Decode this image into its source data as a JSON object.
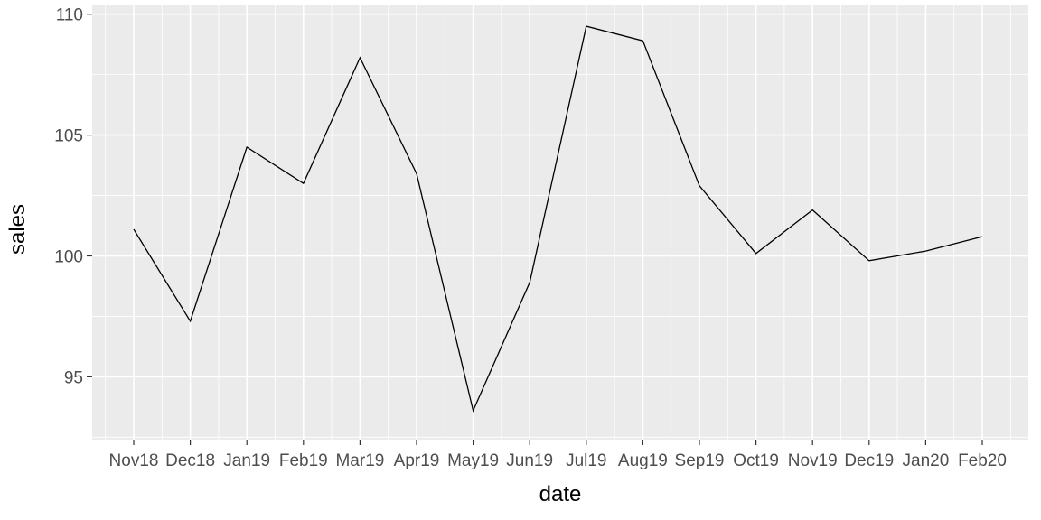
{
  "chart_data": {
    "type": "line",
    "xlabel": "date",
    "ylabel": "sales",
    "x": [
      "Nov18",
      "Dec18",
      "Jan19",
      "Feb19",
      "Mar19",
      "Apr19",
      "May19",
      "Jun19",
      "Jul19",
      "Aug19",
      "Sep19",
      "Oct19",
      "Nov19",
      "Dec19",
      "Jan20",
      "Feb20"
    ],
    "series": [
      {
        "values": [
          101.1,
          97.3,
          104.5,
          103.0,
          108.2,
          103.4,
          93.6,
          98.9,
          109.5,
          108.9,
          102.9,
          100.1,
          101.9,
          99.8,
          100.2,
          100.8
        ]
      }
    ],
    "y_ticks": [
      95,
      100,
      105,
      110
    ],
    "ylim": [
      92.4,
      110.4
    ],
    "grid": true,
    "colors": {
      "panel": "#ebebeb",
      "grid": "#ffffff",
      "line": "#000000"
    }
  }
}
